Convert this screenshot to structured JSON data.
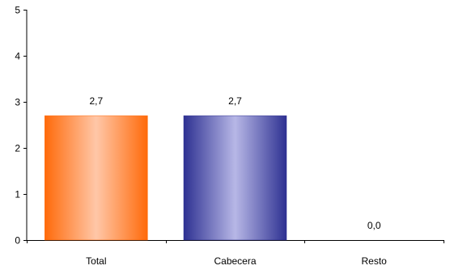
{
  "chart_data": {
    "type": "bar",
    "categories": [
      "Total",
      "Cabecera",
      "Resto"
    ],
    "values": [
      2.7,
      2.7,
      0.0
    ],
    "value_labels": [
      "2,7",
      "2,7",
      "0,0"
    ],
    "title": "",
    "xlabel": "",
    "ylabel": "",
    "ylim": [
      0,
      5
    ],
    "yticks": [
      0,
      1,
      2,
      3,
      4,
      5
    ],
    "ytick_labels": [
      "0",
      "1",
      "2",
      "3",
      "4",
      "5"
    ],
    "grid": false,
    "legend": "none",
    "bar_colors": [
      {
        "edge": "#ff6a0a",
        "center": "#ffc7a8"
      },
      {
        "edge": "#2e3192",
        "center": "#b7b7e6"
      },
      {
        "edge": "#7f7f7f",
        "center": "#d0d0d0"
      }
    ],
    "axis_color": "#000000"
  }
}
